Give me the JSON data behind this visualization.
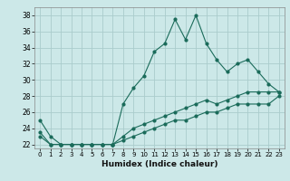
{
  "xlabel": "Humidex (Indice chaleur)",
  "ylabel": "",
  "background_color": "#cce8e8",
  "grid_color": "#aacccc",
  "line_color": "#1a6b5a",
  "x_values": [
    0,
    1,
    2,
    3,
    4,
    5,
    6,
    7,
    8,
    9,
    10,
    11,
    12,
    13,
    14,
    15,
    16,
    17,
    18,
    19,
    20,
    21,
    22,
    23
  ],
  "line1_y": [
    25,
    23,
    22,
    22,
    22,
    22,
    22,
    22,
    27,
    29,
    30.5,
    33.5,
    34.5,
    37.5,
    35,
    38,
    34.5,
    32.5,
    31,
    32,
    32.5,
    31,
    29.5,
    28.5
  ],
  "line2_y": [
    23.5,
    22,
    22,
    22,
    22,
    22,
    22,
    22,
    23,
    24,
    24.5,
    25,
    25.5,
    26,
    26.5,
    27,
    27.5,
    27,
    27.5,
    28,
    28.5,
    28.5,
    28.5,
    28.5
  ],
  "line3_y": [
    23,
    22,
    22,
    22,
    22,
    22,
    22,
    22,
    22.5,
    23,
    23.5,
    24,
    24.5,
    25,
    25,
    25.5,
    26,
    26,
    26.5,
    27,
    27,
    27,
    27,
    28
  ],
  "ylim": [
    21.5,
    39
  ],
  "xlim": [
    -0.5,
    23.5
  ],
  "yticks": [
    22,
    24,
    26,
    28,
    30,
    32,
    34,
    36,
    38
  ],
  "xtick_labels": [
    "0",
    "1",
    "2",
    "3",
    "4",
    "5",
    "6",
    "7",
    "8",
    "9",
    "10",
    "11",
    "12",
    "13",
    "14",
    "15",
    "16",
    "17",
    "18",
    "19",
    "20",
    "21",
    "22",
    "23"
  ]
}
